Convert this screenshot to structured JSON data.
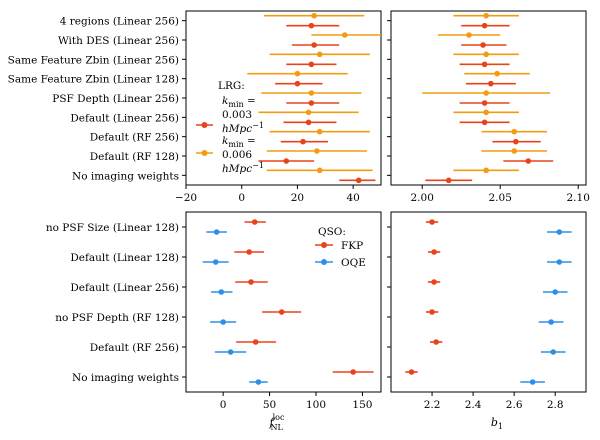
{
  "colors": {
    "red": "#e8431a",
    "orange": "#f49b12",
    "blue": "#2f8fe8"
  },
  "chart_data": [
    {
      "id": "lrg-fnl",
      "type": "scatter",
      "subtype": "errorbar",
      "categories": [
        "4 regions (Linear 256)",
        "With DES (Linear 256)",
        "Same Feature Zbin (Linear 256)",
        "Same Feature Zbin (Linear 128)",
        "PSF Depth (Linear 256)",
        "Default (Linear 256)",
        "Default (RF 256)",
        "Default (RF 128)",
        "No imaging weights"
      ],
      "xlim": [
        -20,
        50
      ],
      "xticks": [
        -20,
        0,
        20,
        40
      ],
      "xlabel": "",
      "series": [
        {
          "name": "0.003 hMpc⁻¹",
          "color": "red",
          "values": [
            25,
            26,
            25,
            20,
            25,
            24,
            22,
            16,
            42
          ],
          "err": [
            [
              16,
              35
            ],
            [
              18,
              35
            ],
            [
              16,
              34
            ],
            [
              12,
              29
            ],
            [
              16,
              35
            ],
            [
              15,
              34
            ],
            [
              14,
              31
            ],
            [
              6,
              26
            ],
            [
              35,
              48
            ]
          ]
        },
        {
          "name": "0.006 hMpc⁻¹",
          "color": "orange",
          "values": [
            26,
            37,
            28,
            20,
            25,
            24,
            28,
            27,
            28
          ],
          "err": [
            [
              8,
              44
            ],
            [
              25,
              50
            ],
            [
              10,
              46
            ],
            [
              2,
              38
            ],
            [
              7,
              43
            ],
            [
              6,
              42
            ],
            [
              10,
              46
            ],
            [
              9,
              45
            ],
            [
              9,
              47
            ]
          ]
        }
      ]
    },
    {
      "id": "lrg-b1",
      "type": "scatter",
      "subtype": "errorbar",
      "categories": [
        "4 regions (Linear 256)",
        "With DES (Linear 256)",
        "Same Feature Zbin (Linear 256)",
        "Same Feature Zbin (Linear 128)",
        "PSF Depth (Linear 256)",
        "Default (Linear 256)",
        "Default (RF 256)",
        "Default (RF 128)",
        "No imaging weights"
      ],
      "xlim": [
        1.98,
        2.105
      ],
      "xticks": [
        2.0,
        2.05,
        2.1
      ],
      "xticklabels": [
        "2.00",
        "2.05",
        "2.10"
      ],
      "series": [
        {
          "name": "0.003 hMpc⁻¹",
          "color": "red",
          "values": [
            2.04,
            2.039,
            2.04,
            2.044,
            2.04,
            2.04,
            2.06,
            2.068,
            2.017
          ],
          "err": [
            [
              2.025,
              2.056
            ],
            [
              2.025,
              2.054
            ],
            [
              2.024,
              2.056
            ],
            [
              2.028,
              2.06
            ],
            [
              2.024,
              2.056
            ],
            [
              2.024,
              2.056
            ],
            [
              2.045,
              2.076
            ],
            [
              2.052,
              2.084
            ],
            [
              2.002,
              2.032
            ]
          ]
        },
        {
          "name": "0.006 hMpc⁻¹",
          "color": "orange",
          "values": [
            2.041,
            2.03,
            2.041,
            2.048,
            2.041,
            2.041,
            2.059,
            2.059,
            2.041
          ],
          "err": [
            [
              2.02,
              2.062
            ],
            [
              2.01,
              2.05
            ],
            [
              2.02,
              2.062
            ],
            [
              2.027,
              2.069
            ],
            [
              2.0,
              2.082
            ],
            [
              2.02,
              2.062
            ],
            [
              2.038,
              2.08
            ],
            [
              2.038,
              2.08
            ],
            [
              2.02,
              2.062
            ]
          ]
        }
      ]
    },
    {
      "id": "qso-fnl",
      "type": "scatter",
      "subtype": "errorbar",
      "categories": [
        "no PSF Size (Linear 128)",
        "Default (Linear 128)",
        "Default (Linear 256)",
        "no PSF Depth (RF 128)",
        "Default (RF 256)",
        "No imaging weights"
      ],
      "xlim": [
        -40,
        170
      ],
      "xticks": [
        0,
        50,
        100,
        150
      ],
      "xlabel": "f_NL^loc",
      "series": [
        {
          "name": "FKP",
          "color": "red",
          "values": [
            34,
            28,
            30,
            63,
            35,
            140
          ],
          "err": [
            [
              23,
              46
            ],
            [
              12,
              44
            ],
            [
              13,
              48
            ],
            [
              42,
              84
            ],
            [
              14,
              57
            ],
            [
              118,
              162
            ]
          ]
        },
        {
          "name": "OQE",
          "color": "blue",
          "values": [
            -7,
            -8,
            -2,
            0,
            8,
            38
          ],
          "err": [
            [
              -18,
              4
            ],
            [
              -22,
              6
            ],
            [
              -13,
              10
            ],
            [
              -14,
              14
            ],
            [
              -9,
              25
            ],
            [
              28,
              48
            ]
          ]
        }
      ]
    },
    {
      "id": "qso-b1",
      "type": "scatter",
      "subtype": "errorbar",
      "categories": [
        "no PSF Size (Linear 128)",
        "Default (Linear 128)",
        "Default (Linear 256)",
        "no PSF Depth (RF 128)",
        "Default (RF 256)",
        "No imaging weights"
      ],
      "xlim": [
        2.0,
        2.95
      ],
      "xticks": [
        2.2,
        2.4,
        2.6,
        2.8
      ],
      "xticklabels": [
        "2.2",
        "2.4",
        "2.6",
        "2.8"
      ],
      "xlabel": "b_1",
      "series": [
        {
          "name": "FKP",
          "color": "red",
          "values": [
            2.2,
            2.21,
            2.21,
            2.2,
            2.22,
            2.1
          ],
          "err": [
            [
              2.17,
              2.23
            ],
            [
              2.18,
              2.24
            ],
            [
              2.18,
              2.24
            ],
            [
              2.17,
              2.23
            ],
            [
              2.19,
              2.25
            ],
            [
              2.07,
              2.13
            ]
          ]
        },
        {
          "name": "OQE",
          "color": "blue",
          "values": [
            2.82,
            2.82,
            2.8,
            2.78,
            2.79,
            2.69
          ],
          "err": [
            [
              2.76,
              2.88
            ],
            [
              2.76,
              2.88
            ],
            [
              2.74,
              2.86
            ],
            [
              2.72,
              2.84
            ],
            [
              2.73,
              2.85
            ],
            [
              2.63,
              2.75
            ]
          ]
        }
      ]
    }
  ],
  "legends": {
    "lrg": {
      "title": "LRG:",
      "kmin": "k",
      "kmin_sub": "min",
      "eq": " =",
      "units": "hMpc",
      "units_sup": "−1",
      "entries": [
        {
          "value": "0.003",
          "color": "red"
        },
        {
          "value": "0.006",
          "color": "orange"
        }
      ]
    },
    "qso": {
      "title": "QSO:",
      "entries": [
        {
          "label": "FKP",
          "color": "red"
        },
        {
          "label": "OQE",
          "color": "blue"
        }
      ]
    }
  },
  "axis_titles": {
    "fnl": "f",
    "fnl_sub": "NL",
    "fnl_sup": "loc",
    "b1": "b",
    "b1_sub": "1"
  }
}
